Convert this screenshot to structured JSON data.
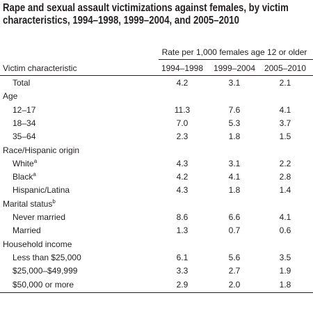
{
  "title": "Rape and sexual assault victimizations against females, by victim characteristics, 1994–1998, 1999–2004, and 2005–2010",
  "header": {
    "spanner": "Rate per 1,000 females age 12 or older",
    "stub": "Victim characteristic",
    "columns": [
      "1994–1998",
      "1999–2004",
      "2005–2010"
    ]
  },
  "rows": [
    {
      "label": "Total",
      "values": [
        "4.2",
        "3.1",
        "2.1"
      ]
    }
  ],
  "sections": [
    {
      "heading": "Age",
      "rows": [
        {
          "label": "12–17",
          "values": [
            "11.3",
            "7.6",
            "4.1"
          ]
        },
        {
          "label": "18–34",
          "values": [
            "7.0",
            "5.3",
            "3.7"
          ]
        },
        {
          "label": "35–64",
          "values": [
            "2.3",
            "1.8",
            "1.5"
          ]
        }
      ]
    },
    {
      "heading": "Race/Hispanic origin",
      "rows": [
        {
          "label": "White",
          "note": "a",
          "values": [
            "4.3",
            "3.1",
            "2.2"
          ]
        },
        {
          "label": "Black",
          "note": "a",
          "values": [
            "4.2",
            "4.1",
            "2.8"
          ]
        },
        {
          "label": "Hispanic/Latina",
          "values": [
            "4.3",
            "1.8",
            "1.4"
          ]
        }
      ]
    },
    {
      "heading": "Marital status",
      "note": "b",
      "rows": [
        {
          "label": "Never married",
          "values": [
            "8.6",
            "6.6",
            "4.1"
          ]
        },
        {
          "label": "Married",
          "values": [
            "1.3",
            "0.7",
            "0.6"
          ]
        }
      ]
    },
    {
      "heading": "Household income",
      "rows": [
        {
          "label": "Less than $25,000",
          "values": [
            "6.1",
            "5.6",
            "3.5"
          ]
        },
        {
          "label": "$25,000–$49,999",
          "values": [
            "3.3",
            "2.7",
            "1.9"
          ]
        },
        {
          "label": "$50,000 or more",
          "values": [
            "2.9",
            "2.0",
            "1.8"
          ]
        }
      ]
    }
  ]
}
